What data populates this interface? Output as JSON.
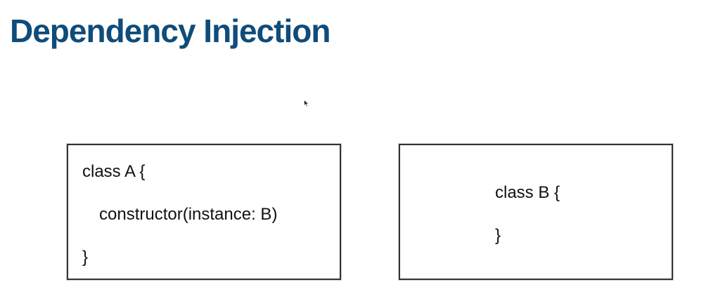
{
  "slide": {
    "title": "Dependency Injection",
    "title_color": "#0f4c7a"
  },
  "class_a": {
    "lines": [
      "class A {",
      "constructor(instance: B)",
      "}"
    ]
  },
  "class_b": {
    "lines": [
      "class B {",
      "}"
    ]
  },
  "cursor": {
    "icon": "mouse-pointer-icon"
  }
}
